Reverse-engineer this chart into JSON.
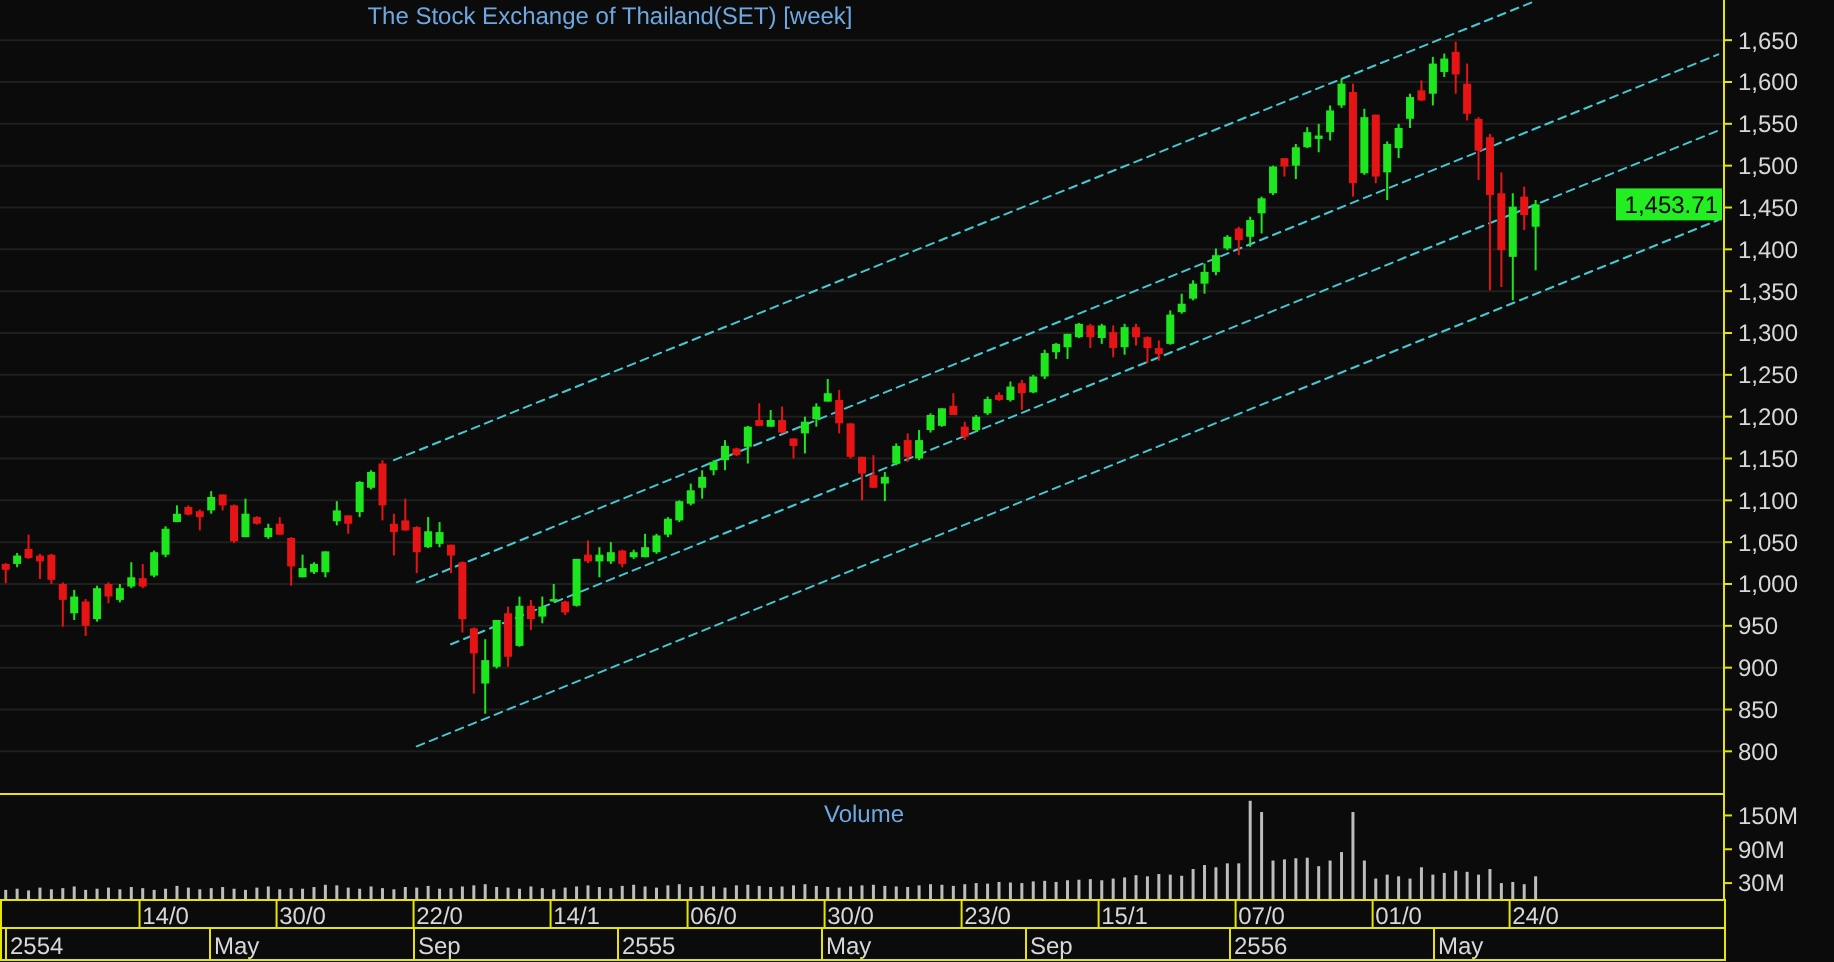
{
  "chart_data": [
    {
      "type": "candlestick",
      "title": "The Stock Exchange of Thailand(SET) [week]",
      "tick_labels": "y",
      "grid": "y",
      "ylim": [
        749,
        1698
      ],
      "yticks": [
        800,
        850,
        900,
        950,
        {
          "value": 1000,
          "label": "1,000"
        },
        {
          "value": 1050,
          "label": "1,050"
        },
        {
          "value": 1100,
          "label": "1,100"
        },
        {
          "value": 1150,
          "label": "1,150"
        },
        {
          "value": 1200,
          "label": "1,200"
        },
        {
          "value": 1250,
          "label": "1,250"
        },
        {
          "value": 1300,
          "label": "1,300"
        },
        {
          "value": 1350,
          "label": "1,350"
        },
        {
          "value": 1400,
          "label": "1,400"
        },
        {
          "value": 1450,
          "label": "1,450"
        },
        {
          "value": 1500,
          "label": "1,500"
        },
        {
          "value": 1550,
          "label": "1,550"
        },
        {
          "value": 1600,
          "label": "1,600"
        },
        {
          "value": 1650,
          "label": "1,650"
        }
      ],
      "categories": [
        null,
        null,
        null,
        null,
        null,
        null,
        null,
        null,
        null,
        null,
        null,
        null,
        null,
        null,
        null,
        null,
        null,
        null,
        null,
        null,
        null,
        null,
        null,
        null,
        null,
        null,
        null,
        null,
        null,
        null,
        null,
        null,
        null,
        null,
        null,
        null,
        null,
        null,
        null,
        null,
        null,
        null,
        null,
        null,
        null,
        null,
        null,
        null,
        null,
        null,
        null,
        null,
        null,
        null,
        null,
        null,
        null,
        null,
        null,
        null,
        null,
        null,
        null,
        null,
        null,
        null,
        null,
        null,
        null,
        null,
        null,
        null,
        null,
        null,
        null,
        null,
        null,
        null,
        null,
        null,
        null,
        null,
        null,
        null,
        null,
        null,
        null,
        null,
        null,
        null,
        null,
        null,
        null,
        null,
        null,
        null,
        null,
        null,
        null,
        null,
        null,
        null,
        null,
        null,
        null,
        null,
        null,
        null,
        null,
        null,
        null,
        null,
        null,
        null,
        null,
        null,
        null,
        null,
        null,
        null,
        null,
        null,
        null,
        null,
        null,
        null,
        null,
        null,
        null,
        null,
        null,
        null,
        null,
        null,
        null,
        null,
        null,
        null,
        null,
        null,
        null,
        null,
        null,
        null,
        null,
        null,
        null,
        null,
        null,
        null,
        null
      ],
      "ohlc": [
        [
          1024,
          1025,
          1001,
          1017
        ],
        [
          1024,
          1037,
          1020,
          1034
        ],
        [
          1042,
          1059,
          1030,
          1031
        ],
        [
          1034,
          1036,
          1006,
          1027
        ],
        [
          1035,
          1036,
          1000,
          1005
        ],
        [
          1000,
          1002,
          949,
          981
        ],
        [
          965,
          993,
          957,
          985
        ],
        [
          979,
          982,
          938,
          950
        ],
        [
          958,
          998,
          955,
          995
        ],
        [
          1000,
          1002,
          977,
          985
        ],
        [
          981,
          1000,
          978,
          995
        ],
        [
          997,
          1026,
          995,
          1008
        ],
        [
          1007,
          1024,
          995,
          997
        ],
        [
          1010,
          1040,
          1008,
          1038
        ],
        [
          1035,
          1069,
          1032,
          1066
        ],
        [
          1074,
          1094,
          1074,
          1084
        ],
        [
          1092,
          1094,
          1082,
          1083
        ],
        [
          1087,
          1089,
          1064,
          1080
        ],
        [
          1088,
          1111,
          1084,
          1104
        ],
        [
          1107,
          1107,
          1088,
          1094
        ],
        [
          1094,
          1095,
          1049,
          1051
        ],
        [
          1056,
          1102,
          1056,
          1084
        ],
        [
          1080,
          1081,
          1071,
          1072
        ],
        [
          1056,
          1072,
          1054,
          1067
        ],
        [
          1072,
          1080,
          1059,
          1059
        ],
        [
          1055,
          1056,
          998,
          1021
        ],
        [
          1008,
          1035,
          1008,
          1019
        ],
        [
          1014,
          1026,
          1012,
          1024
        ],
        [
          1014,
          1039,
          1008,
          1039
        ],
        [
          1075,
          1099,
          1070,
          1088
        ],
        [
          1082,
          1082,
          1060,
          1072
        ],
        [
          1086,
          1123,
          1080,
          1122
        ],
        [
          1115,
          1136,
          1113,
          1134
        ],
        [
          1144,
          1148,
          1076,
          1094
        ],
        [
          1072,
          1084,
          1034,
          1062
        ],
        [
          1076,
          1102,
          1064,
          1064
        ],
        [
          1068,
          1069,
          1013,
          1038
        ],
        [
          1044,
          1080,
          1043,
          1063
        ],
        [
          1048,
          1074,
          1044,
          1062
        ],
        [
          1047,
          1047,
          1013,
          1034
        ],
        [
          1026,
          1027,
          942,
          958
        ],
        [
          947,
          948,
          869,
          917
        ],
        [
          881,
          934,
          845,
          909
        ],
        [
          901,
          957,
          899,
          957
        ],
        [
          965,
          973,
          901,
          913
        ],
        [
          926,
          985,
          925,
          974
        ],
        [
          974,
          981,
          945,
          958
        ],
        [
          961,
          985,
          953,
          973
        ],
        [
          979,
          1000,
          979,
          982
        ],
        [
          979,
          980,
          963,
          966
        ],
        [
          974,
          1030,
          973,
          1030
        ],
        [
          1035,
          1052,
          1025,
          1027
        ],
        [
          1027,
          1044,
          1008,
          1035
        ],
        [
          1027,
          1050,
          1024,
          1038
        ],
        [
          1040,
          1041,
          1020,
          1024
        ],
        [
          1032,
          1041,
          1030,
          1038
        ],
        [
          1032,
          1060,
          1032,
          1044
        ],
        [
          1038,
          1060,
          1036,
          1058
        ],
        [
          1059,
          1080,
          1056,
          1078
        ],
        [
          1076,
          1100,
          1074,
          1099
        ],
        [
          1096,
          1120,
          1094,
          1112
        ],
        [
          1115,
          1136,
          1102,
          1128
        ],
        [
          1136,
          1148,
          1130,
          1146
        ],
        [
          1148,
          1172,
          1136,
          1165
        ],
        [
          1162,
          1163,
          1153,
          1154
        ],
        [
          1164,
          1189,
          1144,
          1188
        ],
        [
          1196,
          1216,
          1189,
          1189
        ],
        [
          1188,
          1208,
          1188,
          1196
        ],
        [
          1196,
          1212,
          1180,
          1181
        ],
        [
          1174,
          1174,
          1150,
          1165
        ],
        [
          1180,
          1200,
          1156,
          1194
        ],
        [
          1197,
          1216,
          1188,
          1212
        ],
        [
          1218,
          1245,
          1218,
          1228
        ],
        [
          1220,
          1232,
          1180,
          1192
        ],
        [
          1192,
          1192,
          1150,
          1152
        ],
        [
          1152,
          1152,
          1100,
          1132
        ],
        [
          1130,
          1154,
          1115,
          1115
        ],
        [
          1120,
          1134,
          1099,
          1128
        ],
        [
          1144,
          1168,
          1142,
          1165
        ],
        [
          1172,
          1180,
          1146,
          1152
        ],
        [
          1150,
          1184,
          1148,
          1172
        ],
        [
          1184,
          1204,
          1181,
          1202
        ],
        [
          1189,
          1210,
          1188,
          1210
        ],
        [
          1213,
          1228,
          1202,
          1202
        ],
        [
          1188,
          1194,
          1172,
          1176
        ],
        [
          1184,
          1202,
          1182,
          1200
        ],
        [
          1204,
          1224,
          1202,
          1221
        ],
        [
          1226,
          1229,
          1219,
          1220
        ],
        [
          1220,
          1242,
          1218,
          1236
        ],
        [
          1240,
          1244,
          1208,
          1228
        ],
        [
          1229,
          1250,
          1228,
          1248
        ],
        [
          1248,
          1280,
          1245,
          1276
        ],
        [
          1277,
          1288,
          1269,
          1287
        ],
        [
          1283,
          1299,
          1269,
          1299
        ],
        [
          1295,
          1312,
          1294,
          1311
        ],
        [
          1309,
          1311,
          1282,
          1295
        ],
        [
          1294,
          1311,
          1287,
          1309
        ],
        [
          1301,
          1309,
          1271,
          1282
        ],
        [
          1283,
          1311,
          1274,
          1307
        ],
        [
          1307,
          1311,
          1285,
          1295
        ],
        [
          1295,
          1296,
          1264,
          1282
        ],
        [
          1282,
          1291,
          1267,
          1275
        ],
        [
          1287,
          1327,
          1286,
          1322
        ],
        [
          1325,
          1347,
          1323,
          1335
        ],
        [
          1341,
          1363,
          1339,
          1359
        ],
        [
          1359,
          1383,
          1347,
          1373
        ],
        [
          1373,
          1401,
          1369,
          1393
        ],
        [
          1401,
          1417,
          1399,
          1415
        ],
        [
          1425,
          1427,
          1393,
          1411
        ],
        [
          1415,
          1439,
          1403,
          1435
        ],
        [
          1443,
          1463,
          1419,
          1461
        ],
        [
          1467,
          1500,
          1465,
          1499
        ],
        [
          1509,
          1509,
          1487,
          1499
        ],
        [
          1500,
          1526,
          1484,
          1522
        ],
        [
          1522,
          1546,
          1521,
          1540
        ],
        [
          1532,
          1550,
          1516,
          1536
        ],
        [
          1540,
          1572,
          1530,
          1566
        ],
        [
          1572,
          1604,
          1569,
          1598
        ],
        [
          1588,
          1598,
          1463,
          1479
        ],
        [
          1491,
          1568,
          1489,
          1558
        ],
        [
          1561,
          1561,
          1479,
          1487
        ],
        [
          1492,
          1529,
          1459,
          1526
        ],
        [
          1521,
          1550,
          1509,
          1545
        ],
        [
          1556,
          1586,
          1545,
          1582
        ],
        [
          1590,
          1602,
          1577,
          1578
        ],
        [
          1586,
          1630,
          1572,
          1622
        ],
        [
          1612,
          1634,
          1606,
          1628
        ],
        [
          1636,
          1648,
          1586,
          1609
        ],
        [
          1598,
          1622,
          1554,
          1562
        ],
        [
          1556,
          1558,
          1483,
          1518
        ],
        [
          1534,
          1538,
          1351,
          1465
        ],
        [
          1467,
          1492,
          1355,
          1399
        ],
        [
          1391,
          1467,
          1339,
          1451
        ],
        [
          1463,
          1475,
          1423,
          1441
        ],
        [
          1427,
          1459,
          1375,
          1453.71
        ],
        null,
        null,
        null,
        null,
        null,
        null,
        null,
        null,
        null,
        null,
        null,
        null,
        null,
        null,
        null,
        null
      ],
      "series": [
        {
          "type": "line",
          "color": "#46c8d2",
          "line_style": "dashed",
          "values": [
            null,
            null,
            null,
            null,
            null,
            null,
            null,
            null,
            null,
            null,
            null,
            null,
            null,
            null,
            null,
            null,
            null,
            null,
            null,
            null,
            null,
            null,
            null,
            null,
            null,
            null,
            null,
            null,
            null,
            null,
            null,
            null,
            null,
            null,
            1148,
            null,
            null,
            null,
            null,
            null,
            null,
            null,
            null,
            null,
            null,
            null,
            null,
            null,
            null,
            null,
            null,
            null,
            null,
            null,
            null,
            null,
            null,
            null,
            null,
            null,
            null,
            null,
            null,
            null,
            null,
            null,
            null,
            null,
            null,
            null,
            null,
            null,
            null,
            null,
            null,
            null,
            null,
            null,
            null,
            null,
            null,
            null,
            null,
            null,
            null,
            null,
            null,
            null,
            null,
            null,
            null,
            null,
            null,
            null,
            null,
            null,
            null,
            null,
            null,
            null,
            null,
            null,
            null,
            null,
            null,
            null,
            null,
            null,
            null,
            null,
            null,
            null,
            null,
            null,
            null,
            null,
            null,
            null,
            null,
            null,
            null,
            null,
            null,
            null,
            null,
            null,
            null,
            null,
            null,
            null,
            null,
            null,
            null,
            null,
            1697,
            null,
            null,
            null,
            null,
            null,
            null,
            null,
            null,
            null,
            null,
            null,
            null,
            null,
            null,
            null,
            null
          ]
        },
        {
          "type": "line",
          "color": "#46c8d2",
          "line_style": "dashed",
          "values": [
            null,
            null,
            null,
            null,
            null,
            null,
            null,
            null,
            null,
            null,
            null,
            null,
            null,
            null,
            null,
            null,
            null,
            null,
            null,
            null,
            null,
            null,
            null,
            null,
            null,
            null,
            null,
            null,
            null,
            null,
            null,
            null,
            null,
            null,
            null,
            null,
            1002,
            null,
            null,
            null,
            null,
            null,
            null,
            null,
            null,
            null,
            null,
            null,
            null,
            null,
            null,
            null,
            null,
            null,
            null,
            null,
            null,
            null,
            null,
            null,
            null,
            null,
            null,
            null,
            null,
            null,
            null,
            null,
            null,
            null,
            null,
            null,
            null,
            null,
            null,
            null,
            null,
            null,
            null,
            null,
            null,
            null,
            null,
            null,
            null,
            null,
            null,
            null,
            null,
            null,
            null,
            null,
            null,
            null,
            null,
            null,
            null,
            null,
            null,
            null,
            null,
            null,
            null,
            null,
            null,
            null,
            null,
            null,
            null,
            null,
            null,
            null,
            null,
            null,
            null,
            null,
            null,
            null,
            null,
            null,
            null,
            null,
            null,
            null,
            null,
            null,
            null,
            null,
            null,
            null,
            null,
            null,
            null,
            null,
            null,
            null,
            null,
            null,
            null,
            null,
            null,
            null,
            null,
            null,
            null,
            null,
            null,
            null,
            null,
            null,
            1633
          ]
        },
        {
          "type": "line",
          "color": "#46c8d2",
          "line_style": "dashed",
          "values": [
            null,
            null,
            null,
            null,
            null,
            null,
            null,
            null,
            null,
            null,
            null,
            null,
            null,
            null,
            null,
            null,
            null,
            null,
            null,
            null,
            null,
            null,
            null,
            null,
            null,
            null,
            null,
            null,
            null,
            null,
            null,
            null,
            null,
            null,
            null,
            null,
            null,
            null,
            null,
            928,
            null,
            null,
            null,
            null,
            null,
            null,
            null,
            null,
            null,
            null,
            null,
            null,
            null,
            null,
            null,
            null,
            null,
            null,
            null,
            null,
            null,
            null,
            null,
            null,
            null,
            null,
            null,
            null,
            null,
            null,
            null,
            null,
            null,
            null,
            null,
            null,
            null,
            null,
            null,
            null,
            null,
            null,
            null,
            null,
            null,
            null,
            null,
            null,
            null,
            null,
            null,
            null,
            null,
            null,
            null,
            null,
            null,
            null,
            null,
            null,
            null,
            null,
            null,
            null,
            null,
            null,
            null,
            null,
            null,
            null,
            null,
            null,
            null,
            null,
            null,
            null,
            null,
            null,
            null,
            null,
            null,
            null,
            null,
            null,
            null,
            null,
            null,
            null,
            null,
            null,
            null,
            null,
            null,
            null,
            null,
            null,
            null,
            null,
            null,
            null,
            null,
            null,
            null,
            null,
            null,
            null,
            null,
            null,
            null,
            null,
            1542
          ]
        },
        {
          "type": "line",
          "color": "#46c8d2",
          "line_style": "dashed",
          "values": [
            null,
            null,
            null,
            null,
            null,
            null,
            null,
            null,
            null,
            null,
            null,
            null,
            null,
            null,
            null,
            null,
            null,
            null,
            null,
            null,
            null,
            null,
            null,
            null,
            null,
            null,
            null,
            null,
            null,
            null,
            null,
            null,
            null,
            null,
            null,
            null,
            806,
            null,
            null,
            null,
            null,
            null,
            null,
            null,
            null,
            null,
            null,
            null,
            null,
            null,
            null,
            null,
            null,
            null,
            null,
            null,
            null,
            null,
            null,
            null,
            null,
            null,
            null,
            null,
            null,
            null,
            null,
            null,
            null,
            null,
            null,
            null,
            null,
            null,
            null,
            null,
            null,
            null,
            null,
            null,
            null,
            null,
            null,
            null,
            null,
            null,
            null,
            null,
            null,
            null,
            null,
            null,
            null,
            null,
            null,
            null,
            null,
            null,
            null,
            null,
            null,
            null,
            null,
            null,
            null,
            null,
            null,
            null,
            null,
            null,
            null,
            null,
            null,
            null,
            null,
            null,
            null,
            null,
            null,
            null,
            null,
            null,
            null,
            null,
            null,
            null,
            null,
            null,
            null,
            null,
            null,
            null,
            null,
            null,
            null,
            null,
            null,
            null,
            null,
            null,
            null,
            null,
            null,
            null,
            null,
            null,
            null,
            null,
            null,
            null,
            1435
          ]
        }
      ],
      "annotations": [
        "1,453.71"
      ]
    },
    {
      "type": "bar",
      "title": "Volume",
      "color": "#bdbdbd",
      "ylim": [
        0,
        188
      ],
      "yticks": [
        {
          "value": 30,
          "label": "30M"
        },
        {
          "value": 90,
          "label": "90M"
        },
        {
          "value": 150,
          "label": "150M"
        }
      ],
      "categories": [
        null,
        null,
        null,
        null,
        null,
        null,
        null,
        null,
        null,
        null,
        null,
        null,
        null,
        null,
        "14/0",
        null,
        null,
        null,
        null,
        null,
        null,
        null,
        null,
        null,
        null,
        null,
        "30/0",
        null,
        null,
        null,
        null,
        null,
        null,
        null,
        null,
        null,
        null,
        null,
        "22/0",
        null,
        null,
        null,
        null,
        null,
        null,
        null,
        null,
        null,
        null,
        null,
        "14/1",
        null,
        null,
        null,
        null,
        null,
        null,
        null,
        null,
        null,
        null,
        null,
        "06/0",
        null,
        null,
        null,
        null,
        null,
        null,
        null,
        null,
        null,
        null,
        null,
        "30/0",
        null,
        null,
        null,
        null,
        null,
        null,
        null,
        null,
        null,
        null,
        null,
        "23/0",
        null,
        null,
        null,
        null,
        null,
        null,
        null,
        null,
        null,
        null,
        null,
        "15/1",
        null,
        null,
        null,
        null,
        null,
        null,
        null,
        null,
        null,
        null,
        null,
        "07/0",
        null,
        null,
        null,
        null,
        null,
        null,
        null,
        null,
        null,
        null,
        null,
        "01/0",
        null,
        null,
        null,
        null,
        null,
        null,
        null,
        null,
        null,
        null,
        null,
        "24/0",
        null,
        null,
        null,
        null,
        null,
        null,
        null,
        null,
        null,
        null,
        null,
        null,
        null,
        null,
        null,
        null
      ],
      "values": [
        18,
        20,
        17,
        22,
        19,
        21,
        24,
        18,
        20,
        22,
        19,
        23,
        21,
        18,
        20,
        25,
        22,
        19,
        21,
        23,
        20,
        18,
        22,
        24,
        19,
        21,
        20,
        23,
        27,
        26,
        22,
        20,
        24,
        21,
        19,
        23,
        22,
        25,
        20,
        21,
        24,
        26,
        28,
        23,
        22,
        20,
        24,
        21,
        19,
        22,
        24,
        26,
        23,
        21,
        25,
        27,
        24,
        22,
        26,
        28,
        23,
        25,
        24,
        22,
        26,
        27,
        25,
        23,
        24,
        26,
        28,
        25,
        23,
        22,
        24,
        26,
        27,
        25,
        24,
        23,
        26,
        28,
        27,
        25,
        28,
        30,
        29,
        32,
        31,
        30,
        33,
        34,
        32,
        35,
        36,
        37,
        35,
        38,
        40,
        44,
        42,
        46,
        45,
        43,
        55,
        62,
        58,
        65,
        65,
        176,
        156,
        70,
        72,
        74,
        75,
        60,
        70,
        85,
        156,
        70,
        38,
        45,
        42,
        38,
        58,
        45,
        48,
        52,
        50,
        45,
        55,
        30,
        32,
        28,
        42,
        null,
        null,
        null,
        null,
        null,
        null,
        null,
        null,
        null,
        null,
        null,
        null,
        null,
        null,
        null,
        null
      ],
      "annotations": [
        "2554",
        "May",
        "Sep",
        "2555",
        "May",
        "Sep",
        "2556",
        "May"
      ]
    }
  ]
}
